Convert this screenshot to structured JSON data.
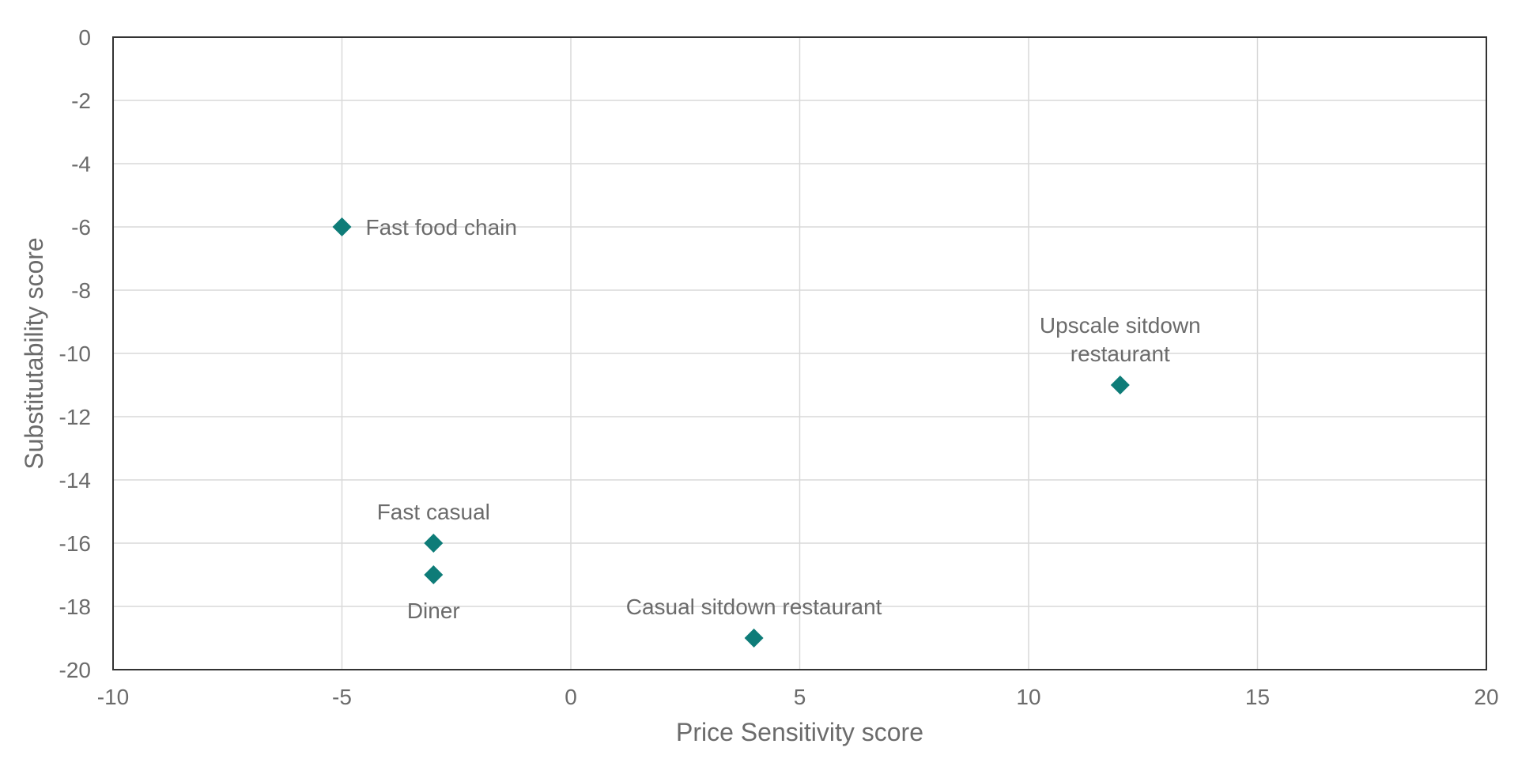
{
  "chart_data": {
    "type": "scatter",
    "title": "",
    "xlabel": "Price Sensitivity score",
    "ylabel": "Substitutability score",
    "xlim": [
      -10,
      20
    ],
    "ylim": [
      -20,
      0
    ],
    "x_ticks": [
      -10,
      -5,
      0,
      5,
      10,
      15,
      20
    ],
    "y_ticks": [
      0,
      -2,
      -4,
      -6,
      -8,
      -10,
      -12,
      -14,
      -16,
      -18,
      -20
    ],
    "grid": true,
    "marker": "diamond",
    "marker_color": "#0e7c78",
    "points": [
      {
        "label": "Fast food chain",
        "x": -5,
        "y": -6,
        "label_position": "right"
      },
      {
        "label": "Upscale sitdown restaurant",
        "label_lines": [
          "Upscale sitdown",
          "restaurant"
        ],
        "x": 12,
        "y": -11,
        "label_position": "above"
      },
      {
        "label": "Fast casual",
        "x": -3,
        "y": -16,
        "label_position": "above"
      },
      {
        "label": "Diner",
        "x": -3,
        "y": -17,
        "label_position": "below"
      },
      {
        "label": "Casual sitdown restaurant",
        "x": 4,
        "y": -19,
        "label_position": "above"
      }
    ]
  }
}
